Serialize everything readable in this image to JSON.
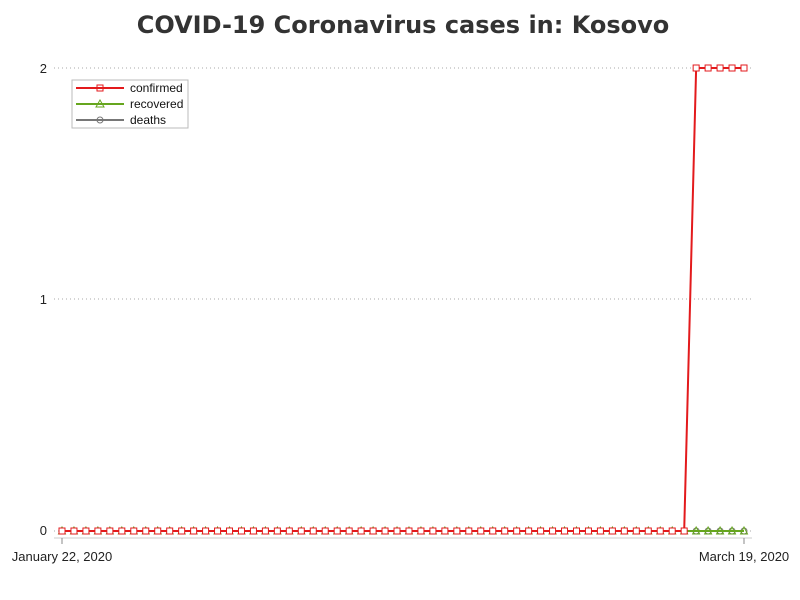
{
  "chart_data": {
    "type": "line",
    "title": "COVID-19 Coronavirus cases in: Kosovo",
    "xlabel": "",
    "ylabel": "",
    "x_tick_labels": [
      "January 22, 2020",
      "March 19, 2020"
    ],
    "x_range": [
      "2020-01-22",
      "2020-03-19"
    ],
    "num_points": 58,
    "ylim": [
      0,
      2
    ],
    "y_ticks": [
      0,
      1,
      2
    ],
    "grid": "horizontal dotted",
    "legend_position": "top-left",
    "series": [
      {
        "name": "confirmed",
        "color": "#e31a1c",
        "marker": "square",
        "values": [
          0,
          0,
          0,
          0,
          0,
          0,
          0,
          0,
          0,
          0,
          0,
          0,
          0,
          0,
          0,
          0,
          0,
          0,
          0,
          0,
          0,
          0,
          0,
          0,
          0,
          0,
          0,
          0,
          0,
          0,
          0,
          0,
          0,
          0,
          0,
          0,
          0,
          0,
          0,
          0,
          0,
          0,
          0,
          0,
          0,
          0,
          0,
          0,
          0,
          0,
          0,
          0,
          0,
          2,
          2,
          2,
          2,
          2
        ]
      },
      {
        "name": "recovered",
        "color": "#66a61e",
        "marker": "triangle",
        "values": [
          0,
          0,
          0,
          0,
          0,
          0,
          0,
          0,
          0,
          0,
          0,
          0,
          0,
          0,
          0,
          0,
          0,
          0,
          0,
          0,
          0,
          0,
          0,
          0,
          0,
          0,
          0,
          0,
          0,
          0,
          0,
          0,
          0,
          0,
          0,
          0,
          0,
          0,
          0,
          0,
          0,
          0,
          0,
          0,
          0,
          0,
          0,
          0,
          0,
          0,
          0,
          0,
          0,
          0,
          0,
          0,
          0,
          0
        ]
      },
      {
        "name": "deaths",
        "color": "#777777",
        "marker": "circle",
        "values": [
          0,
          0,
          0,
          0,
          0,
          0,
          0,
          0,
          0,
          0,
          0,
          0,
          0,
          0,
          0,
          0,
          0,
          0,
          0,
          0,
          0,
          0,
          0,
          0,
          0,
          0,
          0,
          0,
          0,
          0,
          0,
          0,
          0,
          0,
          0,
          0,
          0,
          0,
          0,
          0,
          0,
          0,
          0,
          0,
          0,
          0,
          0,
          0,
          0,
          0,
          0,
          0,
          0,
          0,
          0,
          0,
          0,
          0
        ]
      }
    ]
  }
}
